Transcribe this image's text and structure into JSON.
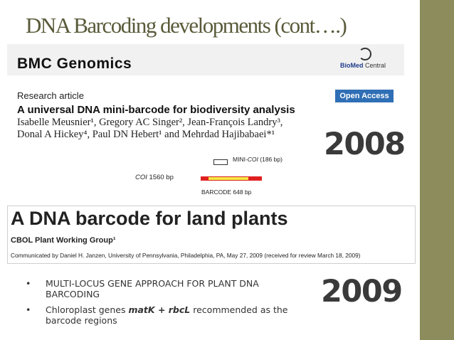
{
  "slide": {
    "title": "DNA Barcoding developments (cont….)",
    "year_2008": "2008",
    "year_2009": "2009"
  },
  "paper_2008": {
    "journal": "BMC Genomics",
    "publisher_bold": "BioMed",
    "publisher_rest": " Central",
    "article_type": "Research article",
    "access": "Open Access",
    "title": "A universal DNA mini-barcode for biodiversity analysis",
    "authors_line1": "Isabelle Meusnier¹, Gregory AC Singer², Jean-François Landry³,",
    "authors_line2": "Donal A Hickey⁴, Paul DN Hebert¹ and Mehrdad Hajibabaei*¹",
    "diagram": {
      "mini_label_prefix": "MINI-",
      "mini_label_gene": "COI",
      "mini_label_suffix": " (186 bp)",
      "coi_gene": "COI",
      "coi_suffix": " 1560 bp",
      "barcode_label": "BARCODE 648 bp"
    }
  },
  "paper_2009": {
    "title": "A DNA barcode for land plants",
    "group": "CBOL Plant Working Group¹",
    "communicated": "Communicated by Daniel H. Janzen, University of Pennsylvania, Philadelphia, PA, May 27, 2009 (received for review March 18, 2009)"
  },
  "bullets": {
    "item1": "MULTI-LOCUS GENE APPROACH FOR PLANT DNA BARCODING",
    "item2_prefix": "Chloroplast genes ",
    "item2_genes": "matK + rbcL",
    "item2_suffix": " recommended as the barcode regions"
  },
  "colors": {
    "sidebar": "#8c8c5c",
    "title": "#5a5a3a",
    "open_access": "#2f6fb5",
    "coi_bar": "#e02020",
    "barcode_region": "#f4e842"
  }
}
